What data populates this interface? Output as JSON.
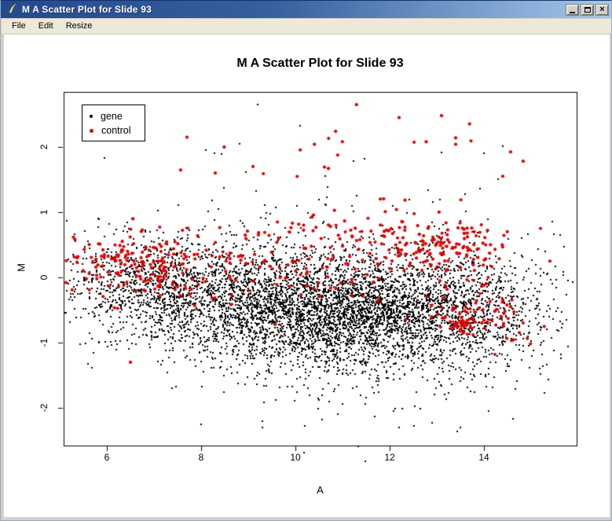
{
  "window": {
    "title": "M A Scatter Plot for Slide 93",
    "icon": "r-graphics-feather-icon",
    "menu": [
      {
        "label": "File"
      },
      {
        "label": "Edit"
      },
      {
        "label": "Resize"
      }
    ],
    "controls": {
      "minimize": "minimize",
      "maximize": "maximize",
      "close": "close"
    }
  },
  "chart_data": {
    "type": "scatter",
    "title": "M A Scatter Plot for Slide 93",
    "xlabel": "A",
    "ylabel": "M",
    "xlim": [
      5.06,
      15.97
    ],
    "ylim": [
      -2.85,
      2.85
    ],
    "x_ticks": [
      6,
      8,
      10,
      12,
      14
    ],
    "y_ticks": [
      -2,
      -1,
      0,
      1,
      2
    ],
    "grid": false,
    "background": "#FFFFFF",
    "legend": {
      "position": "top-left",
      "entries": [
        {
          "label": "gene",
          "color": "#000000"
        },
        {
          "label": "control",
          "color": "#DE0000"
        }
      ]
    },
    "seed": 93,
    "series": [
      {
        "name": "gene",
        "color": "#000000",
        "marker": "small-square",
        "marker_px": 2,
        "n_total": 6235,
        "clusters": [
          {
            "n": 2600,
            "a_mean": 11.6,
            "a_sd": 1.45,
            "m_mean": -0.55,
            "m_sd": 0.42
          },
          {
            "n": 1700,
            "a_mean": 9.6,
            "a_sd": 1.5,
            "m_mean": -0.45,
            "m_sd": 0.45
          },
          {
            "n": 1100,
            "a_mean": 7.2,
            "a_sd": 1.1,
            "m_mean": -0.15,
            "m_sd": 0.4
          },
          {
            "n": 520,
            "a_mean": 13.9,
            "a_sd": 0.85,
            "m_mean": -0.55,
            "m_sd": 0.55
          },
          {
            "n": 270,
            "a_mean": 11.0,
            "a_sd": 2.1,
            "m_mean": -0.6,
            "m_sd": 0.95
          },
          {
            "n": 45,
            "a_mean": 10.5,
            "a_sd": 1.9,
            "m_mean": 0.85,
            "m_sd": 0.55
          }
        ],
        "outlier_points": [
          [
            9.2,
            2.65
          ],
          [
            10.1,
            2.33
          ],
          [
            13.1,
            1.92
          ],
          [
            14.0,
            1.9
          ],
          [
            8.1,
            1.95
          ],
          [
            10.2,
            -2.28
          ],
          [
            10.9,
            -2.1
          ],
          [
            14.1,
            -2.05
          ],
          [
            9.3,
            -2.2
          ],
          [
            12.2,
            -2.3
          ],
          [
            15.3,
            0.4
          ],
          [
            15.45,
            -0.1
          ]
        ]
      },
      {
        "name": "control",
        "color": "#DE0000",
        "marker": "dot",
        "marker_px": 4.2,
        "n_total": 589,
        "clusters": [
          {
            "n": 120,
            "a_mean": 6.4,
            "a_sd": 0.65,
            "m_mean": 0.2,
            "m_sd": 0.22
          },
          {
            "n": 60,
            "a_mean": 7.6,
            "a_sd": 0.85,
            "m_mean": 0.05,
            "m_sd": 0.3
          },
          {
            "n": 90,
            "a_mean": 9.8,
            "a_sd": 1.2,
            "m_mean": 0.3,
            "m_sd": 0.35
          },
          {
            "n": 145,
            "a_mean": 12.9,
            "a_sd": 0.75,
            "m_mean": 0.45,
            "m_sd": 0.22
          },
          {
            "n": 70,
            "a_mean": 13.9,
            "a_sd": 0.55,
            "m_mean": -0.55,
            "m_sd": 0.25
          },
          {
            "n": 30,
            "a_mean": 13.5,
            "a_sd": 0.13,
            "m_mean": -0.72,
            "m_sd": 0.07
          },
          {
            "n": 40,
            "a_mean": 11.0,
            "a_sd": 1.8,
            "m_mean": 0.6,
            "m_sd": 0.45
          },
          {
            "n": 22,
            "a_mean": 11.0,
            "a_sd": 2.0,
            "m_mean": 1.75,
            "m_sd": 0.45
          }
        ],
        "outlier_points": [
          [
            12.2,
            2.45
          ],
          [
            13.1,
            2.48
          ],
          [
            13.4,
            2.14
          ],
          [
            13.4,
            2.04
          ],
          [
            7.7,
            2.15
          ],
          [
            9.1,
            1.7
          ],
          [
            10.7,
            1.67
          ],
          [
            6.5,
            -1.3
          ],
          [
            14.4,
            1.55
          ],
          [
            8.3,
            1.6
          ],
          [
            15.2,
            0.75
          ],
          [
            15.4,
            0.25
          ]
        ]
      }
    ]
  }
}
